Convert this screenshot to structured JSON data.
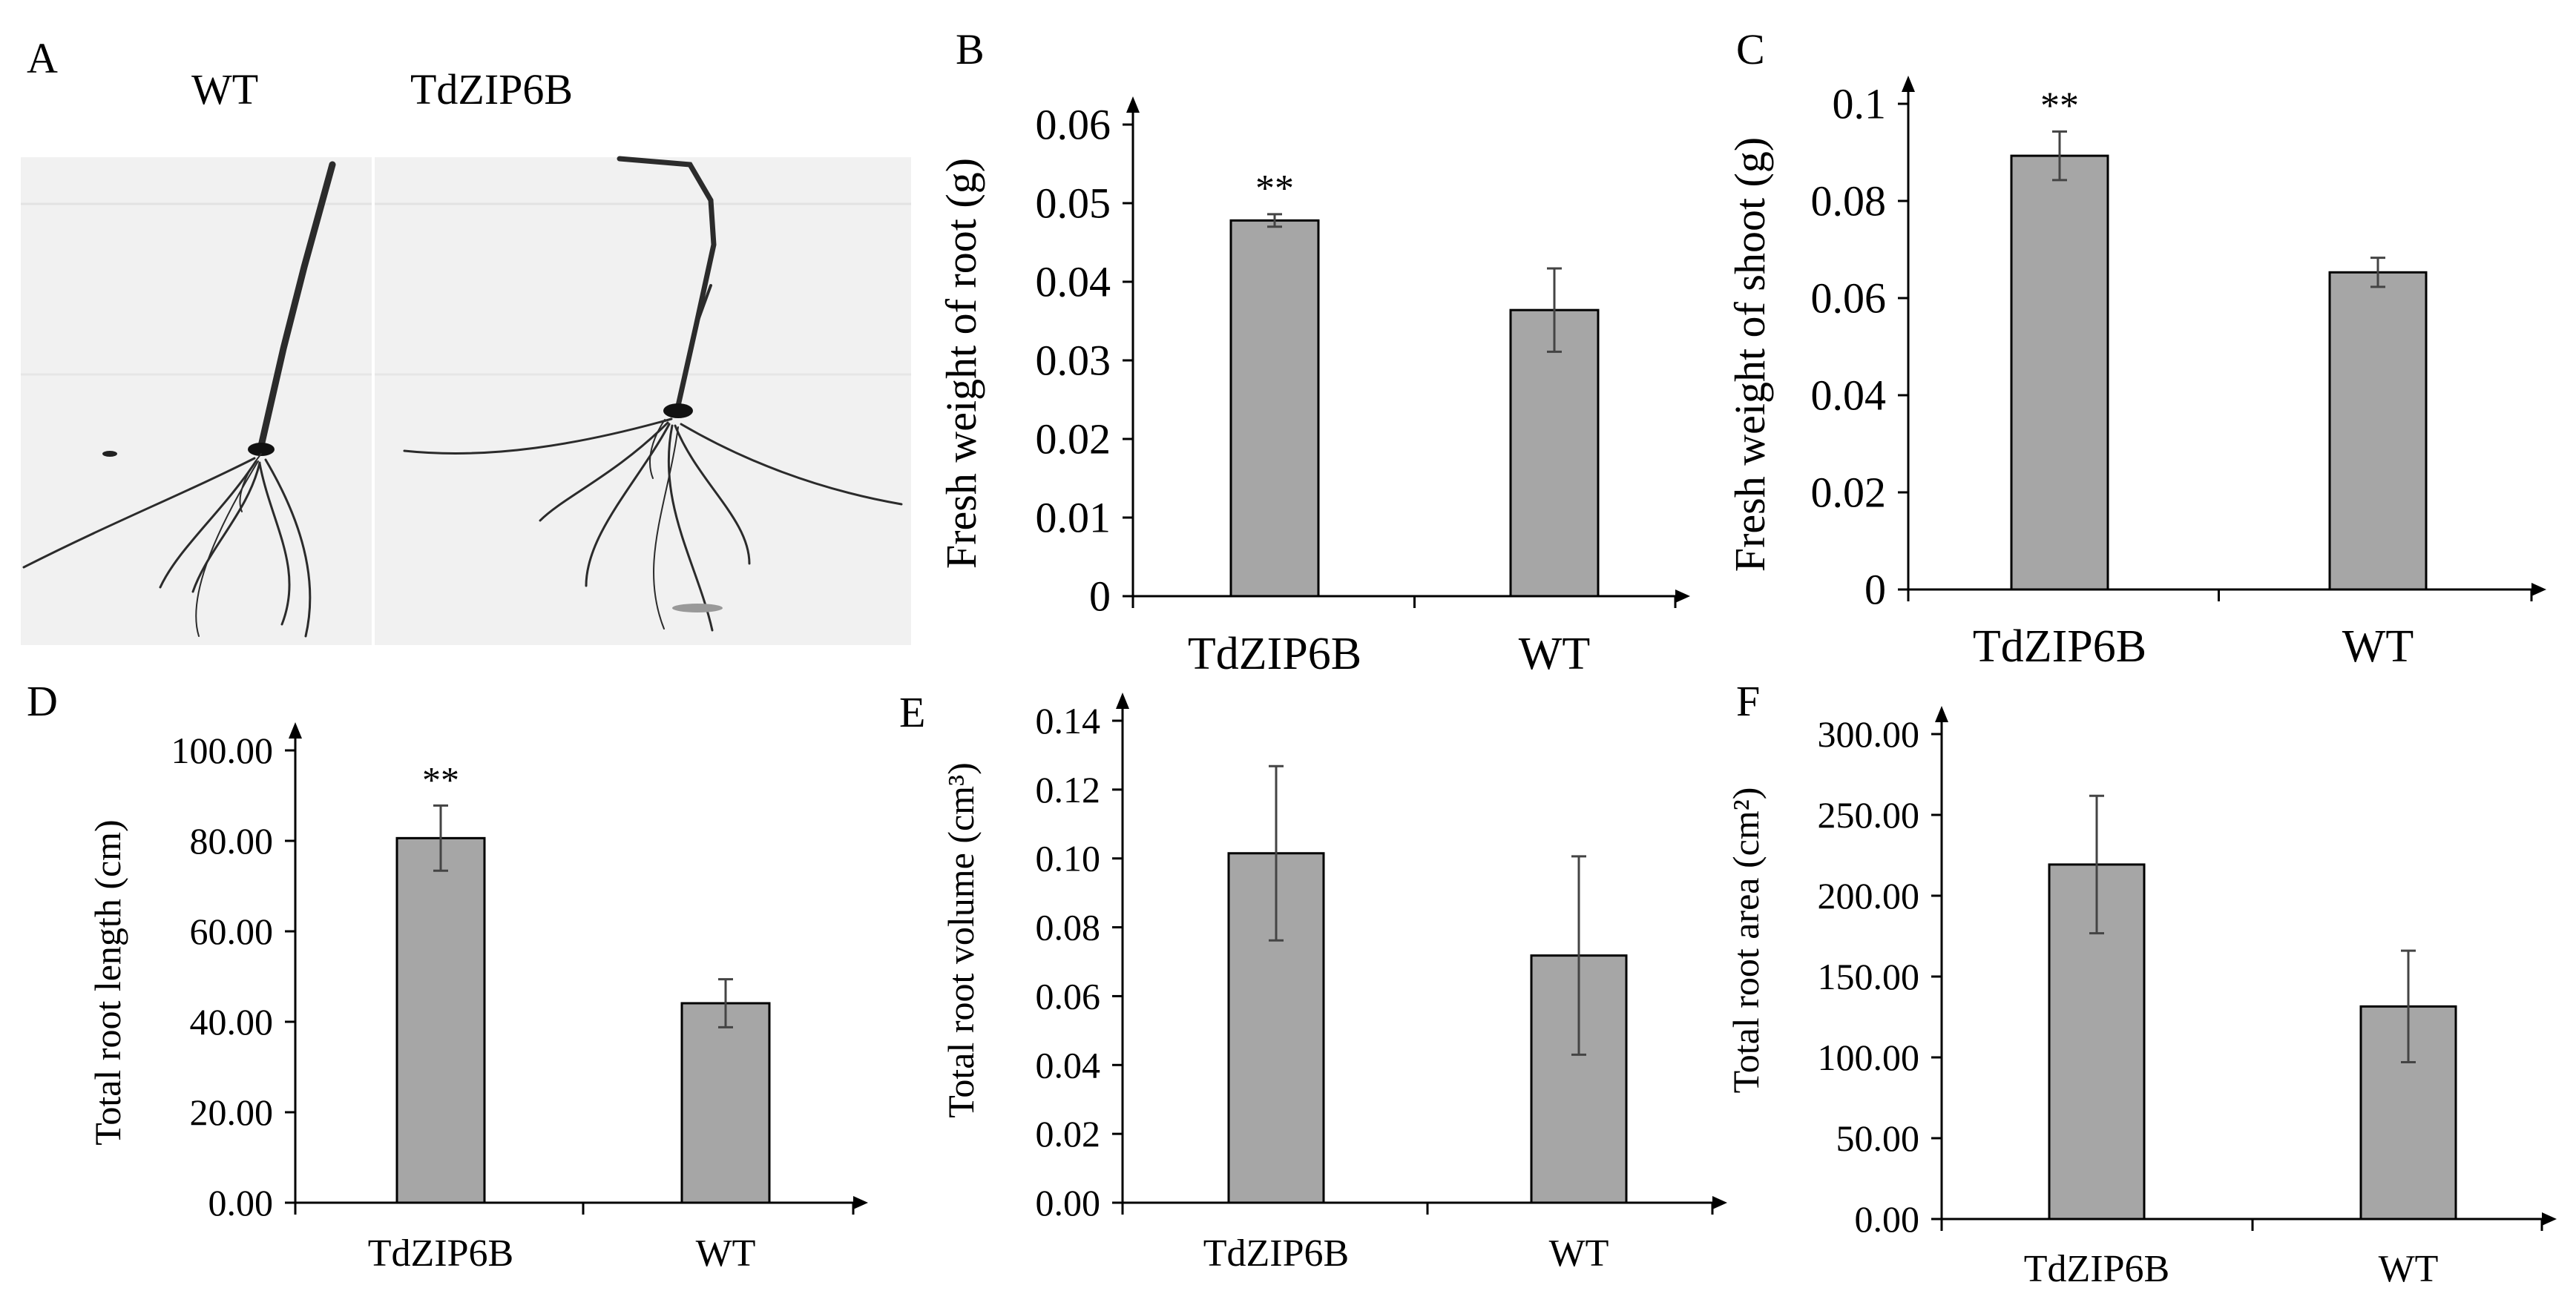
{
  "panel_a": {
    "letter": "A",
    "labels": [
      "WT",
      "TdZIP6B"
    ]
  },
  "chart_data": [
    {
      "panel": "B",
      "type": "bar",
      "categories": [
        "TdZIP6B",
        "WT"
      ],
      "values": [
        0.0478,
        0.0364
      ],
      "errors": [
        0.0008,
        0.0053
      ],
      "significance": [
        "**",
        ""
      ],
      "ylabel": "Fresh weight of root (g)",
      "ylim": [
        0,
        0.06
      ],
      "yticks": [
        "0",
        "0.01",
        "0.02",
        "0.03",
        "0.04",
        "0.05",
        "0.06"
      ],
      "grid": false,
      "bar_color": "#a6a6a6"
    },
    {
      "panel": "C",
      "type": "bar",
      "categories": [
        "TdZIP6B",
        "WT"
      ],
      "values": [
        0.0893,
        0.0653
      ],
      "errors": [
        0.005,
        0.003
      ],
      "significance": [
        "**",
        ""
      ],
      "ylabel": "Fresh weight of shoot (g)",
      "ylim": [
        0,
        0.1
      ],
      "yticks": [
        "0",
        "0.02",
        "0.04",
        "0.06",
        "0.08",
        "0.1"
      ],
      "grid": false,
      "bar_color": "#a6a6a6"
    },
    {
      "panel": "D",
      "type": "bar",
      "categories": [
        "TdZIP6B",
        "WT"
      ],
      "values": [
        80.6,
        44.1
      ],
      "errors": [
        7.2,
        5.3
      ],
      "significance": [
        "**",
        ""
      ],
      "ylabel": "Total root length (cm)",
      "ylim": [
        0,
        100
      ],
      "yticks": [
        "0.00",
        "20.00",
        "40.00",
        "60.00",
        "80.00",
        "100.00"
      ],
      "grid": false,
      "bar_color": "#a6a6a6"
    },
    {
      "panel": "E",
      "type": "bar",
      "categories": [
        "TdZIP6B",
        "WT"
      ],
      "values": [
        0.1015,
        0.0718
      ],
      "errors": [
        0.0253,
        0.0288
      ],
      "significance": [
        "",
        ""
      ],
      "ylabel": "Total root volume (cm³)",
      "ylim": [
        0,
        0.14
      ],
      "yticks": [
        "0.00",
        "0.02",
        "0.04",
        "0.06",
        "0.08",
        "0.10",
        "0.12",
        "0.14"
      ],
      "grid": false,
      "bar_color": "#a6a6a6"
    },
    {
      "panel": "F",
      "type": "bar",
      "categories": [
        "TdZIP6B",
        "WT"
      ],
      "values": [
        219.3,
        131.5
      ],
      "errors": [
        42.5,
        34.5
      ],
      "significance": [
        "",
        ""
      ],
      "ylabel": "Total root area (cm²)",
      "ylim": [
        0,
        300
      ],
      "yticks": [
        "0.00",
        "50.00",
        "100.00",
        "150.00",
        "200.00",
        "250.00",
        "300.00"
      ],
      "grid": false,
      "bar_color": "#a6a6a6"
    }
  ]
}
